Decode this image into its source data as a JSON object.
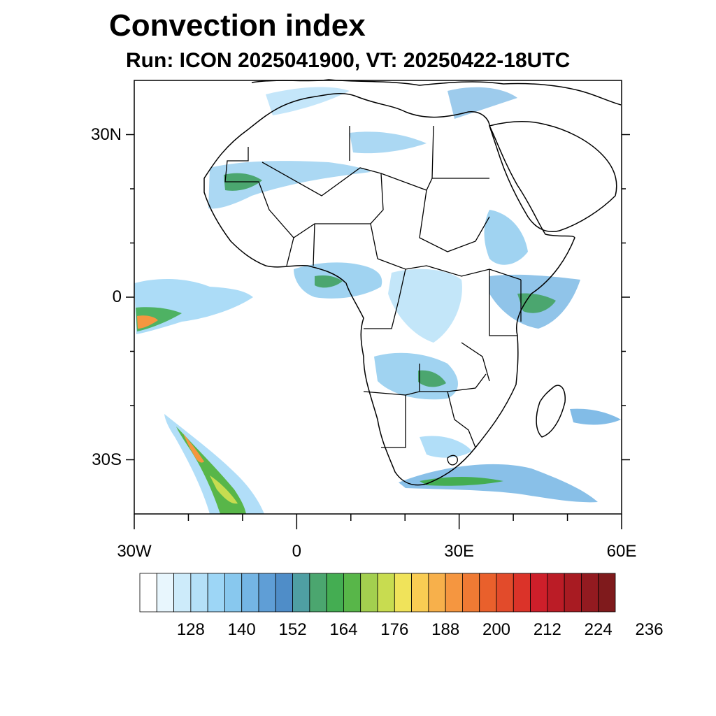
{
  "title": "Convection index",
  "subtitle": "Run: ICON 2025041900,  VT: 20250422-18UTC",
  "map": {
    "extent": {
      "lon": [
        -30,
        60
      ],
      "lat": [
        -40,
        40
      ]
    },
    "lat_ticks": [
      {
        "value": 30,
        "label": "30N"
      },
      {
        "value": 0,
        "label": "0"
      },
      {
        "value": -30,
        "label": "30S"
      }
    ],
    "lon_ticks": [
      {
        "value": -30,
        "label": "30W"
      },
      {
        "value": 0,
        "label": "0"
      },
      {
        "value": 30,
        "label": "30E"
      },
      {
        "value": 60,
        "label": "60E"
      }
    ],
    "minor_lon_ticks": [
      -20,
      -10,
      10,
      20,
      40,
      50
    ],
    "minor_lat_ticks": [
      20,
      10,
      -10,
      -20
    ]
  },
  "colorbar": {
    "colors": [
      "#ffffff",
      "#e8f6fd",
      "#cdebfa",
      "#b4e0f8",
      "#9dd6f6",
      "#88c8ee",
      "#74b5e4",
      "#5f9ed6",
      "#4f8dc8",
      "#4f9fa3",
      "#4ba66f",
      "#44ad52",
      "#58b649",
      "#a3cf4f",
      "#c8dc50",
      "#f0e35a",
      "#f9cc53",
      "#f7b04b",
      "#f59640",
      "#ef7a34",
      "#e9602c",
      "#e24b2b",
      "#db3329",
      "#cd1f2a",
      "#bb1c26",
      "#a81b22",
      "#931a20",
      "#7f1a1c"
    ],
    "labels": [
      "128",
      "140",
      "152",
      "164",
      "176",
      "188",
      "200",
      "212",
      "224",
      "236"
    ]
  }
}
